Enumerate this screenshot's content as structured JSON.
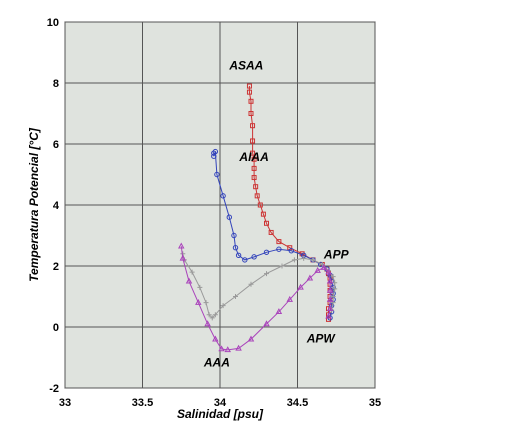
{
  "chart_data": {
    "type": "scatter",
    "title": "",
    "xlabel": "Salinidad [psu]",
    "ylabel": "Temperatura Potencial [°C]",
    "xlim": [
      33,
      35
    ],
    "ylim": [
      -2,
      10
    ],
    "xticks": [
      "33",
      "33.5",
      "34",
      "34.5",
      "35"
    ],
    "yticks": [
      "-2",
      "0",
      "2",
      "4",
      "6",
      "8",
      "10"
    ],
    "x_tick_values": [
      33,
      33.5,
      34,
      34.5,
      35
    ],
    "y_tick_values": [
      -2,
      0,
      2,
      4,
      6,
      8,
      10
    ],
    "grid": true,
    "background_color": "#dfe3de",
    "annotations": [
      {
        "text": "ASAA",
        "x": 34.17,
        "y": 8.45
      },
      {
        "text": "AIAA",
        "x": 34.22,
        "y": 5.45
      },
      {
        "text": "APP",
        "x": 34.75,
        "y": 2.25
      },
      {
        "text": "APW",
        "x": 34.65,
        "y": -0.5
      },
      {
        "text": "AAA",
        "x": 33.98,
        "y": -1.3
      }
    ],
    "series": [
      {
        "color": "#cc3333",
        "marker": "square",
        "points": [
          [
            34.19,
            7.9
          ],
          [
            34.19,
            7.7
          ],
          [
            34.2,
            7.4
          ],
          [
            34.2,
            7.0
          ],
          [
            34.21,
            6.6
          ],
          [
            34.21,
            6.1
          ],
          [
            34.21,
            5.7
          ],
          [
            34.22,
            5.5
          ],
          [
            34.22,
            5.2
          ],
          [
            34.22,
            4.9
          ],
          [
            34.23,
            4.6
          ],
          [
            34.24,
            4.3
          ],
          [
            34.26,
            4.0
          ],
          [
            34.28,
            3.7
          ],
          [
            34.3,
            3.4
          ],
          [
            34.33,
            3.1
          ],
          [
            34.38,
            2.8
          ],
          [
            34.45,
            2.6
          ],
          [
            34.53,
            2.4
          ],
          [
            34.6,
            2.2
          ],
          [
            34.66,
            2.05
          ],
          [
            34.69,
            1.9
          ],
          [
            34.7,
            1.75
          ],
          [
            34.71,
            1.6
          ],
          [
            34.71,
            1.4
          ],
          [
            34.71,
            1.2
          ],
          [
            34.71,
            1.0
          ],
          [
            34.71,
            0.8
          ],
          [
            34.7,
            0.6
          ],
          [
            34.7,
            0.4
          ],
          [
            34.7,
            0.25
          ]
        ]
      },
      {
        "color": "#3344bb",
        "marker": "circle",
        "points": [
          [
            33.96,
            5.7
          ],
          [
            33.96,
            5.6
          ],
          [
            33.97,
            5.75
          ],
          [
            33.98,
            5.0
          ],
          [
            34.02,
            4.3
          ],
          [
            34.06,
            3.6
          ],
          [
            34.09,
            3.0
          ],
          [
            34.1,
            2.6
          ],
          [
            34.12,
            2.35
          ],
          [
            34.16,
            2.2
          ],
          [
            34.22,
            2.3
          ],
          [
            34.3,
            2.45
          ],
          [
            34.38,
            2.55
          ],
          [
            34.46,
            2.5
          ],
          [
            34.54,
            2.35
          ],
          [
            34.6,
            2.2
          ],
          [
            34.65,
            2.05
          ],
          [
            34.69,
            1.9
          ],
          [
            34.71,
            1.7
          ],
          [
            34.72,
            1.5
          ],
          [
            34.73,
            1.3
          ],
          [
            34.73,
            1.1
          ],
          [
            34.73,
            0.9
          ],
          [
            34.72,
            0.7
          ],
          [
            34.72,
            0.5
          ],
          [
            34.71,
            0.3
          ]
        ]
      },
      {
        "color": "#9a9a9a",
        "marker": "plus",
        "points": [
          [
            33.76,
            2.4
          ],
          [
            33.77,
            2.2
          ],
          [
            33.82,
            1.8
          ],
          [
            33.87,
            1.3
          ],
          [
            33.91,
            0.8
          ],
          [
            33.93,
            0.4
          ],
          [
            33.95,
            0.3
          ],
          [
            33.97,
            0.4
          ],
          [
            34.02,
            0.7
          ],
          [
            34.1,
            1.0
          ],
          [
            34.2,
            1.4
          ],
          [
            34.3,
            1.75
          ],
          [
            34.4,
            2.0
          ],
          [
            34.48,
            2.2
          ],
          [
            34.54,
            2.25
          ],
          [
            34.6,
            2.2
          ],
          [
            34.66,
            2.05
          ],
          [
            34.7,
            1.85
          ],
          [
            34.73,
            1.65
          ],
          [
            34.74,
            1.45
          ],
          [
            34.74,
            1.25
          ],
          [
            34.73,
            1.0
          ],
          [
            34.73,
            0.8
          ],
          [
            34.72,
            0.55
          ]
        ]
      },
      {
        "color": "#aa44bb",
        "marker": "triangle",
        "points": [
          [
            33.75,
            2.65
          ],
          [
            33.76,
            2.25
          ],
          [
            33.8,
            1.5
          ],
          [
            33.86,
            0.8
          ],
          [
            33.92,
            0.1
          ],
          [
            33.97,
            -0.4
          ],
          [
            34.01,
            -0.72
          ],
          [
            34.05,
            -0.75
          ],
          [
            34.12,
            -0.7
          ],
          [
            34.2,
            -0.4
          ],
          [
            34.3,
            0.1
          ],
          [
            34.38,
            0.5
          ],
          [
            34.45,
            0.9
          ],
          [
            34.52,
            1.3
          ],
          [
            34.58,
            1.6
          ],
          [
            34.63,
            1.85
          ],
          [
            34.67,
            1.95
          ],
          [
            34.7,
            1.8
          ],
          [
            34.71,
            1.5
          ],
          [
            34.71,
            1.2
          ],
          [
            34.71,
            0.9
          ],
          [
            34.71,
            0.6
          ],
          [
            34.7,
            0.35
          ]
        ]
      }
    ]
  }
}
